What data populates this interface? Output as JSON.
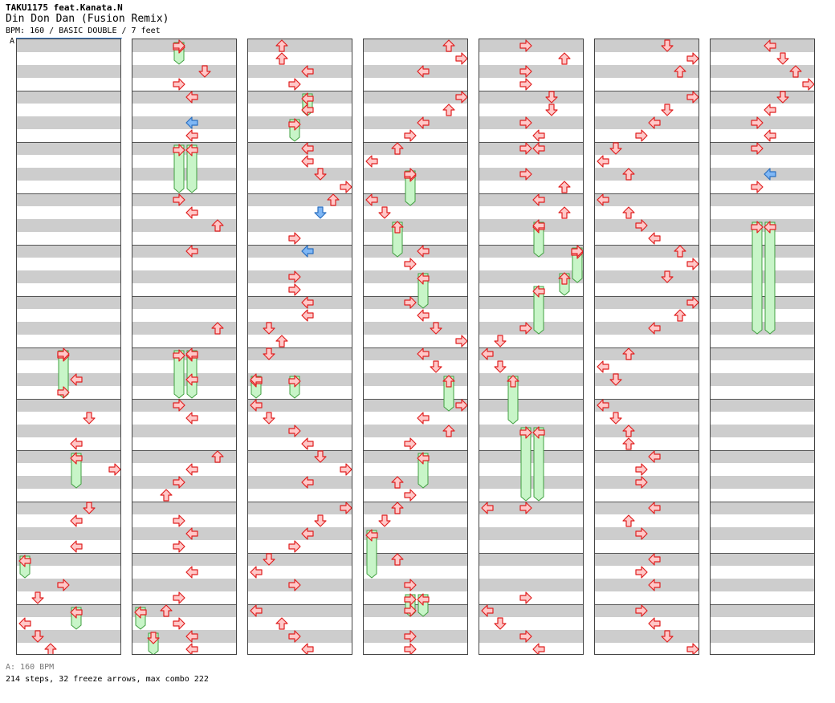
{
  "header": {
    "artist": "TAKU1175 feat.Kanata.N",
    "title": "Din Don Dan (Fusion Remix)",
    "info": "BPM: 160 / BASIC DOUBLE / 7 feet"
  },
  "bpm_marker": "A",
  "footer": {
    "bpm_note": "A: 160 BPM",
    "stats": "214 steps, 32 freeze arrows, max combo 222"
  },
  "colors": {
    "tap_arrow": "#ffc8c8",
    "tap_outline": "#e02020",
    "mine_arrow": "#7fb7f5",
    "freeze_body": "#c8f5c8",
    "freeze_outline": "#40a040",
    "band": "#cdcdcd",
    "bpm_line": "#3a7fd0"
  },
  "chart": {
    "lanes": 8,
    "measures": 12,
    "columns": 7,
    "measures_per_column": 2,
    "rows_per_column": 48,
    "arrow_icon": "arrow-icon"
  }
}
